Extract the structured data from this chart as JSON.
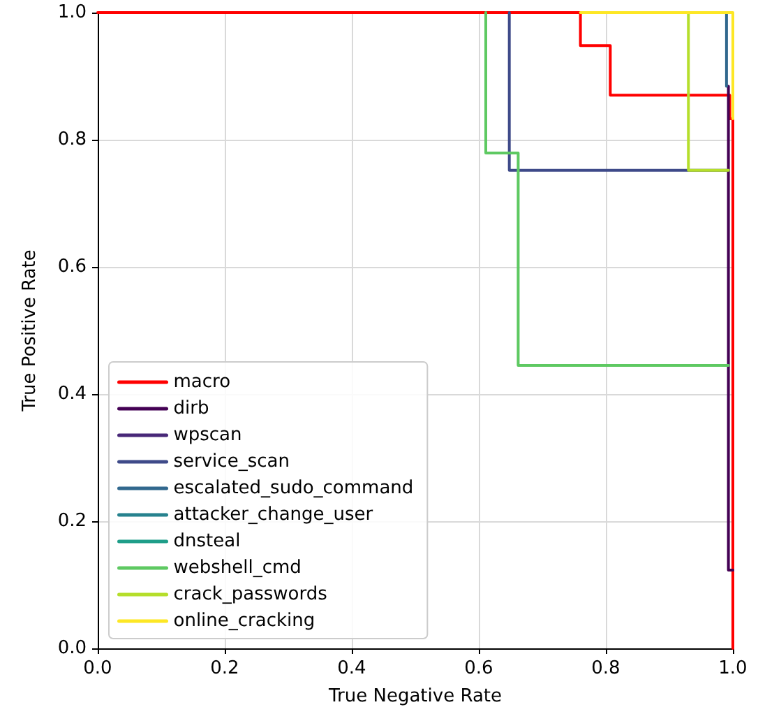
{
  "chart_data": {
    "type": "line",
    "xlabel": "True Negative Rate",
    "ylabel": "True Positive Rate",
    "xlim": [
      0,
      1
    ],
    "ylim": [
      0,
      1
    ],
    "xticks": [
      {
        "value": 0,
        "label": "0.0"
      },
      0.2,
      0.4,
      0.6,
      0.8,
      {
        "value": 1,
        "label": "1.0"
      }
    ],
    "yticks": [
      {
        "value": 0,
        "label": "0.0"
      },
      0.2,
      0.4,
      0.6,
      0.8,
      {
        "value": 1,
        "label": "1.0"
      }
    ],
    "grid": true,
    "legend": "bottom left",
    "marker": "none",
    "line_style": "solid",
    "series": [
      {
        "name": "macro",
        "color": "#ff0000",
        "x": [
          0,
          0.76,
          0.76,
          0.807,
          0.807,
          0.995,
          0.995,
          1,
          1
        ],
        "values": [
          1,
          1,
          0.948,
          0.948,
          0.87,
          0.87,
          0.833,
          0.833,
          0
        ]
      },
      {
        "name": "dirb",
        "color": "#440154",
        "x": [
          0.993,
          0.993,
          1
        ],
        "values": [
          0.884,
          0.123,
          0.123
        ]
      },
      {
        "name": "wpscan",
        "color": "#482878"
      },
      {
        "name": "service_scan",
        "color": "#3e4a89",
        "x": [
          0.648,
          0.648,
          0.993
        ],
        "values": [
          1,
          0.752,
          0.752
        ]
      },
      {
        "name": "escalated_sudo_command",
        "color": "#31688e",
        "x": [
          0.99,
          0.99
        ],
        "values": [
          1,
          0.884
        ]
      },
      {
        "name": "attacker_change_user",
        "color": "#26828e"
      },
      {
        "name": "dnsteal",
        "color": "#1f9e89"
      },
      {
        "name": "webshell_cmd",
        "color": "#5ec962",
        "x": [
          0.611,
          0.611,
          0.662,
          0.662,
          0.993
        ],
        "values": [
          1,
          0.779,
          0.779,
          0.445,
          0.445
        ]
      },
      {
        "name": "crack_passwords",
        "color": "#b5de2b",
        "x": [
          0.93,
          0.93,
          0.993
        ],
        "values": [
          1,
          0.752,
          0.752
        ]
      },
      {
        "name": "online_cracking",
        "color": "#fde725",
        "x": [
          0.76,
          1,
          1
        ],
        "values": [
          1,
          1,
          0.833
        ]
      }
    ]
  }
}
